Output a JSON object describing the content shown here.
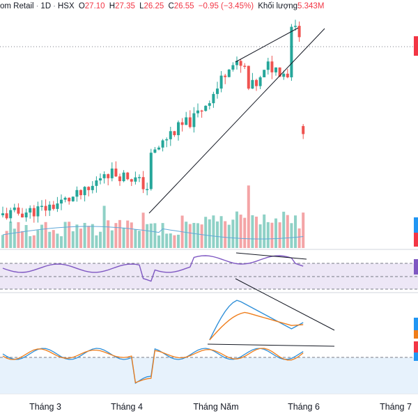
{
  "header": {
    "symbol": "om Retail",
    "interval": "1D",
    "exchange": "HSX",
    "open_label": "O",
    "open": "27.10",
    "high_label": "H",
    "high": "27.35",
    "low_label": "L",
    "low": "26.25",
    "close_label": "C",
    "close": "26.55",
    "change": "−0.95 (−3.45%)",
    "volume_label": "Khối lượng",
    "volume": "5.343M"
  },
  "colors": {
    "up": "#26a69a",
    "down": "#ef5350",
    "vol_up": "#8fd1c6",
    "vol_down": "#f4a4a6",
    "vol_ma": "#5fa8d8",
    "rsi": "#7e57c2",
    "macd": "#2f8fd8",
    "signal": "#ef7d1a",
    "trendline": "#131722"
  },
  "chart_data": [
    {
      "type": "candlestick",
      "x_tick_labels": [
        "Tháng 3",
        "Tháng 4",
        "Tháng Năm",
        "Tháng 6",
        "Tháng 7"
      ],
      "last_candle": {
        "open": 27.1,
        "high": 27.35,
        "low": 26.25,
        "close": 26.55
      },
      "approx_price_scale": [
        20.0,
        34.0
      ],
      "volume_series_visible": true,
      "volume_ma_visible": true,
      "trendline_annotations": 2
    },
    {
      "type": "line",
      "name_hidden": true,
      "description_level": "rsi-like oscillator with shaded band",
      "band_lines": 3
    },
    {
      "type": "line",
      "series_count": 2,
      "description_level": "macd-like pair with divergence trendline"
    },
    {
      "type": "line",
      "series_count": 2,
      "description_level": "stochastic-like pair with shaded band"
    }
  ]
}
